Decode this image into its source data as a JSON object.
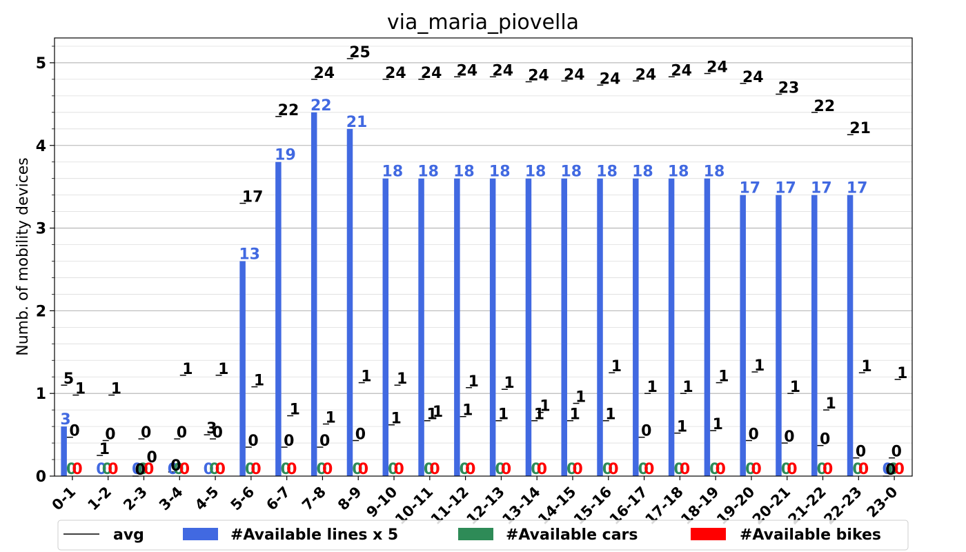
{
  "chart_data": {
    "type": "bar",
    "title": "via_maria_piovella",
    "ylabel": "Numb. of mobility devices",
    "xlabel": "",
    "ylim": [
      0,
      5.3
    ],
    "yticks": [
      0,
      1,
      2,
      3,
      4,
      5
    ],
    "grid": true,
    "legend_position": "bottom",
    "categories": [
      "0-1",
      "1-2",
      "2-3",
      "3-4",
      "4-5",
      "5-6",
      "6-7",
      "7-8",
      "8-9",
      "9-10",
      "10-11",
      "11-12",
      "12-13",
      "13-14",
      "14-15",
      "15-16",
      "16-17",
      "17-18",
      "18-19",
      "19-20",
      "20-21",
      "21-22",
      "22-23",
      "23-0"
    ],
    "series": [
      {
        "name": "#Available lines x 5",
        "color": "#4169e1",
        "values": [
          0.6,
          0,
          0,
          0,
          0,
          2.6,
          3.8,
          4.4,
          4.2,
          3.6,
          3.6,
          3.6,
          3.6,
          3.6,
          3.6,
          3.6,
          3.6,
          3.6,
          3.6,
          3.4,
          3.4,
          3.4,
          3.4,
          0
        ],
        "labels": [
          "3",
          "0",
          "0",
          "0",
          "0",
          "13",
          "19",
          "22",
          "21",
          "18",
          "18",
          "18",
          "18",
          "18",
          "18",
          "18",
          "18",
          "18",
          "18",
          "17",
          "17",
          "17",
          "17",
          "0"
        ]
      },
      {
        "name": "#Available cars",
        "color": "#2e8b57",
        "values": [
          0,
          0,
          0,
          0,
          0,
          0,
          0,
          0,
          0,
          0,
          0,
          0,
          0,
          0,
          0,
          0,
          0,
          0,
          0,
          0,
          0,
          0,
          0,
          0
        ],
        "labels": [
          "0",
          "0",
          "0",
          "0",
          "0",
          "0",
          "0",
          "0",
          "0",
          "0",
          "0",
          "0",
          "0",
          "0",
          "0",
          "0",
          "0",
          "0",
          "0",
          "0",
          "0",
          "0",
          "0",
          "0"
        ]
      },
      {
        "name": "#Available bikes",
        "color": "#ff0000",
        "values": [
          0,
          0,
          0,
          0,
          0,
          0,
          0,
          0,
          0,
          0,
          0,
          0,
          0,
          0,
          0,
          0,
          0,
          0,
          0,
          0,
          0,
          0,
          0,
          0
        ],
        "labels": [
          "0",
          "0",
          "0",
          "0",
          "0",
          "0",
          "0",
          "0",
          "0",
          "0",
          "0",
          "0",
          "0",
          "0",
          "0",
          "0",
          "0",
          "0",
          "0",
          "0",
          "0",
          "0",
          "0",
          "0"
        ]
      }
    ],
    "avg": {
      "name": "avg",
      "color": "#000000",
      "lines": [
        1.1,
        0.25,
        0,
        0.05,
        0.5,
        3.3,
        4.35,
        4.8,
        5.05,
        4.8,
        4.8,
        4.83,
        4.83,
        4.77,
        4.78,
        4.73,
        4.78,
        4.83,
        4.87,
        4.75,
        4.62,
        4.4,
        4.13,
        0
      ],
      "line_labels": [
        "5",
        "1",
        "0",
        "0",
        "3",
        "17",
        "22",
        "24",
        "25",
        "24",
        "24",
        "24",
        "24",
        "24",
        "24",
        "24",
        "24",
        "24",
        "24",
        "24",
        "23",
        "22",
        "21",
        "0"
      ],
      "cars": [
        0.47,
        0.43,
        0.45,
        0.45,
        0.45,
        0.35,
        0.35,
        0.35,
        0.43,
        0.62,
        0.67,
        0.72,
        0.67,
        0.67,
        0.67,
        0.67,
        0.47,
        0.52,
        0.55,
        0.43,
        0.4,
        0.37,
        0.22,
        0.22
      ],
      "car_labels": [
        "0",
        "0",
        "0",
        "0",
        "0",
        "0",
        "0",
        "0",
        "0",
        "1",
        "1",
        "1",
        "1",
        "1",
        "1",
        "1",
        "0",
        "1",
        "1",
        "0",
        "0",
        "0",
        "0",
        "0"
      ],
      "bikes": [
        0.98,
        0.98,
        0.15,
        1.22,
        1.22,
        1.08,
        0.73,
        0.63,
        1.13,
        1.1,
        0.7,
        1.07,
        1.05,
        0.77,
        0.88,
        1.25,
        1.0,
        1.0,
        1.13,
        1.26,
        1.0,
        0.8,
        1.25,
        1.17
      ],
      "bike_labels": [
        "1",
        "1",
        "0",
        "1",
        "1",
        "1",
        "1",
        "1",
        "1",
        "1",
        "1",
        "1",
        "1",
        "1",
        "1",
        "1",
        "1",
        "1",
        "1",
        "1",
        "1",
        "1",
        "1",
        "1"
      ]
    },
    "legend": [
      "avg",
      "#Available lines x 5",
      "#Available cars",
      "#Available bikes"
    ]
  }
}
